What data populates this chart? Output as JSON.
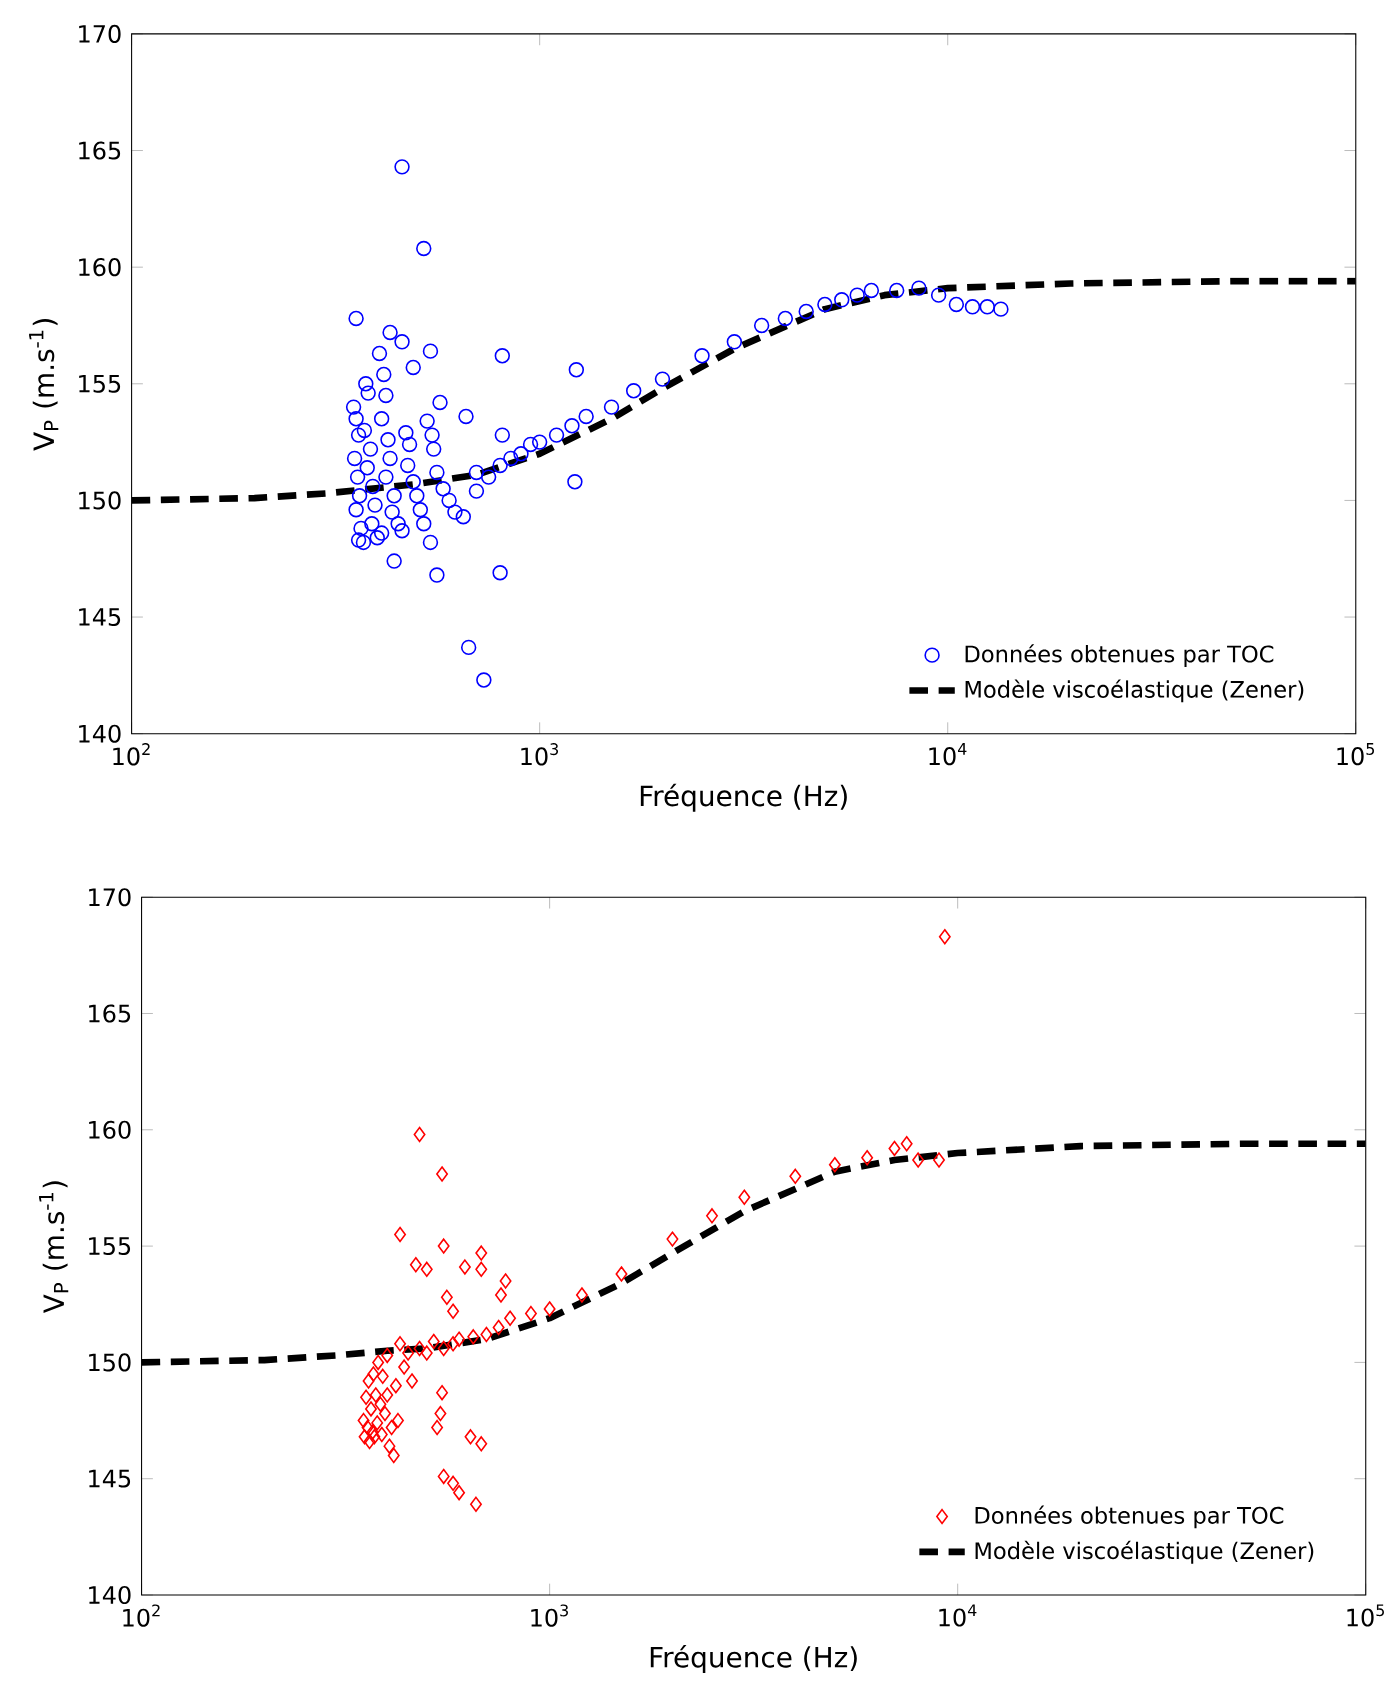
{
  "chart_data": [
    {
      "type": "scatter",
      "xlabel": "Fréquence (Hz)",
      "ylabel": "V$_{P}$ (m.s$^{-1}$)",
      "log": "x",
      "xlim": [
        100,
        100000
      ],
      "ylim": [
        140,
        170
      ],
      "xticks": [
        {
          "value": 100,
          "label": "10$^{2}$"
        },
        {
          "value": 1000,
          "label": "10$^{3}$"
        },
        {
          "value": 10000,
          "label": "10$^{4}$"
        },
        {
          "value": 100000,
          "label": "10$^{5}$"
        }
      ],
      "yticks": [
        140,
        145,
        150,
        155,
        160,
        165,
        170
      ],
      "grid": false,
      "legend": "bottom right",
      "series": [
        {
          "name": "Données obtenues par TOC",
          "marker": "circle",
          "color": "#0000ff",
          "x": [
            350,
            355,
            360,
            352,
            358,
            362,
            355,
            365,
            360,
            370,
            375,
            380,
            372,
            385,
            378,
            390,
            395,
            388,
            400,
            410,
            405,
            415,
            420,
            410,
            425,
            430,
            420,
            440,
            435,
            450,
            460,
            470,
            480,
            475,
            490,
            500,
            510,
            520,
            530,
            545,
            550,
            560,
            580,
            600,
            620,
            650,
            700,
            700,
            750,
            800,
            850,
            900,
            950,
            1000,
            1100,
            1200,
            1300,
            1500,
            1700,
            2000,
            2500,
            3000,
            3500,
            4000,
            4500,
            5000,
            5500,
            6000,
            6500,
            7500,
            8500,
            9500,
            10500,
            11500,
            12500,
            13500,
            460,
            520,
            355,
            430,
            460,
            540,
            810,
            1230,
            490,
            570,
            660,
            810,
            1220,
            440,
            560,
            800,
            670,
            730,
            540
          ],
          "values": [
            154.0,
            153.5,
            152.8,
            151.8,
            151.0,
            150.2,
            149.6,
            148.8,
            148.3,
            148.2,
            155.0,
            154.6,
            153.0,
            152.2,
            151.4,
            150.6,
            149.8,
            149.0,
            148.4,
            148.6,
            156.3,
            155.4,
            154.5,
            153.5,
            152.6,
            151.8,
            151.0,
            150.2,
            149.5,
            149.0,
            148.7,
            152.9,
            152.4,
            151.5,
            150.8,
            150.2,
            149.6,
            149.0,
            153.4,
            152.8,
            152.2,
            151.2,
            150.5,
            150.0,
            149.5,
            149.3,
            150.4,
            151.2,
            151.0,
            151.5,
            151.8,
            152.0,
            152.4,
            152.5,
            152.8,
            153.2,
            153.6,
            154.0,
            154.7,
            155.2,
            156.2,
            156.8,
            157.5,
            157.8,
            158.1,
            158.4,
            158.6,
            158.8,
            159.0,
            159.0,
            159.1,
            158.8,
            158.4,
            158.3,
            158.3,
            158.2,
            164.3,
            160.8,
            157.8,
            157.2,
            156.8,
            156.4,
            156.2,
            155.6,
            155.7,
            154.2,
            153.6,
            152.8,
            150.8,
            147.4,
            146.8,
            146.9,
            143.7,
            142.3,
            148.2
          ]
        },
        {
          "name": "Modèle viscoélastique (Zener)",
          "type": "line",
          "line_style": "dashed",
          "color": "#000000",
          "x": [
            100,
            200,
            300,
            500,
            700,
            1000,
            1500,
            2000,
            3000,
            5000,
            7000,
            10000,
            20000,
            50000,
            100000
          ],
          "values": [
            150.0,
            150.1,
            150.3,
            150.7,
            151.1,
            152.0,
            153.5,
            154.8,
            156.5,
            158.2,
            158.8,
            159.1,
            159.3,
            159.4,
            159.4
          ]
        }
      ]
    },
    {
      "type": "scatter",
      "xlabel": "Fréquence (Hz)",
      "ylabel": "V$_{P}$ (m.s$^{-1}$)",
      "log": "x",
      "xlim": [
        100,
        100000
      ],
      "ylim": [
        140,
        170
      ],
      "xticks": [
        {
          "value": 100,
          "label": "10$^{2}$"
        },
        {
          "value": 1000,
          "label": "10$^{3}$"
        },
        {
          "value": 10000,
          "label": "10$^{4}$"
        },
        {
          "value": 100000,
          "label": "10$^{5}$"
        }
      ],
      "yticks": [
        140,
        145,
        150,
        155,
        160,
        165,
        170
      ],
      "grid": false,
      "legend": "bottom right",
      "series": [
        {
          "name": "Données obtenues par TOC",
          "marker": "diamond",
          "color": "#ff0000",
          "x": [
            350,
            352,
            355,
            358,
            360,
            362,
            365,
            368,
            370,
            372,
            375,
            378,
            380,
            385,
            388,
            390,
            395,
            400,
            400,
            405,
            410,
            415,
            420,
            425,
            430,
            440,
            450,
            460,
            480,
            500,
            520,
            550,
            580,
            600,
            650,
            700,
            750,
            800,
            900,
            1000,
            1200,
            1500,
            2000,
            2500,
            3000,
            4000,
            5000,
            6000,
            7000,
            7500,
            8000,
            9000,
            480,
            545,
            430,
            550,
            470,
            500,
            620,
            680,
            680,
            560,
            580,
            780,
            760,
            545,
            540,
            530,
            640,
            680,
            550,
            580,
            600,
            660,
            9300
          ],
          "values": [
            147.5,
            146.8,
            148.5,
            147.2,
            149.2,
            146.6,
            148.0,
            147.0,
            149.5,
            146.8,
            148.6,
            147.4,
            150.0,
            148.2,
            146.9,
            149.4,
            147.8,
            150.3,
            148.6,
            146.4,
            147.2,
            146.0,
            149.0,
            147.5,
            150.8,
            149.8,
            150.4,
            149.2,
            150.6,
            150.4,
            150.9,
            150.6,
            150.8,
            151.0,
            151.1,
            151.2,
            151.5,
            151.9,
            152.1,
            152.3,
            152.9,
            153.8,
            155.3,
            156.3,
            157.1,
            158.0,
            158.5,
            158.8,
            159.2,
            159.4,
            158.7,
            158.7,
            159.8,
            158.1,
            155.5,
            155.0,
            154.2,
            154.0,
            154.1,
            154.7,
            154.0,
            152.8,
            152.2,
            153.5,
            152.9,
            148.7,
            147.8,
            147.2,
            146.8,
            146.5,
            145.1,
            144.8,
            144.4,
            143.9,
            168.3
          ]
        },
        {
          "name": "Modèle viscoélastique (Zener)",
          "type": "line",
          "line_style": "dashed",
          "color": "#000000",
          "x": [
            100,
            200,
            300,
            400,
            500,
            700,
            1000,
            1500,
            2000,
            3000,
            5000,
            7000,
            10000,
            20000,
            50000,
            100000
          ],
          "values": [
            150.0,
            150.1,
            150.3,
            150.5,
            150.6,
            151.0,
            151.9,
            153.4,
            154.7,
            156.5,
            158.2,
            158.7,
            159.0,
            159.3,
            159.4,
            159.4
          ]
        }
      ]
    }
  ]
}
